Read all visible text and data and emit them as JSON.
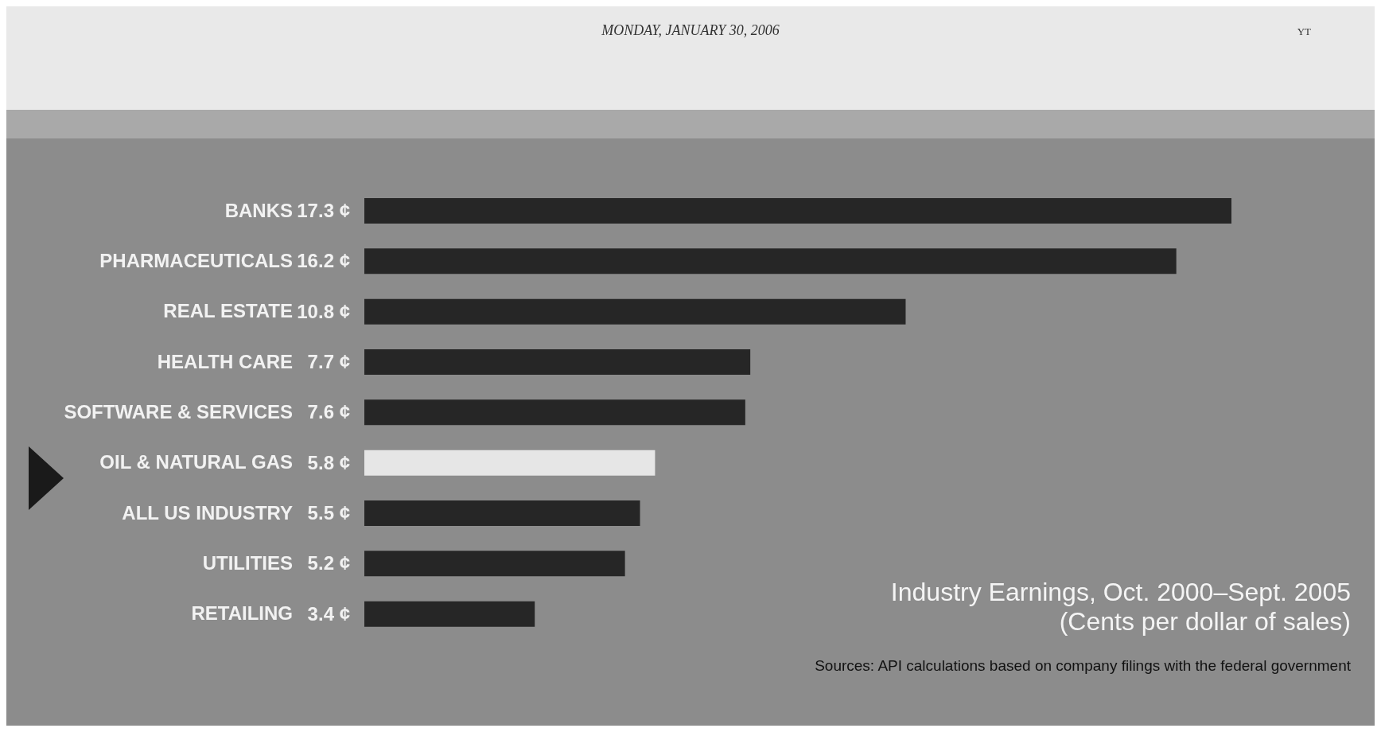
{
  "chart_data": {
    "type": "bar",
    "orientation": "horizontal",
    "title": "Industry Earnings, Oct. 2000–Sept. 2005",
    "subtitle": "(Cents per dollar of sales)",
    "annotations": [
      "MONDAY, JANUARY 30, 2006",
      "YT",
      "Sources: API calculations based on company filings with the federal government"
    ],
    "categories": [
      "BANKS",
      "PHARMACEUTICALS",
      "REAL ESTATE",
      "HEALTH CARE",
      "SOFTWARE & SERVICES",
      "OIL & NATURAL GAS",
      "ALL US INDUSTRY",
      "UTILITIES",
      "RETAILING"
    ],
    "values": [
      17.3,
      16.2,
      10.8,
      7.7,
      7.6,
      5.8,
      5.5,
      5.2,
      3.4
    ],
    "value_labels": [
      "17.3 ¢",
      "16.2 ¢",
      "10.8 ¢",
      "7.7 ¢",
      "7.6 ¢",
      "5.8 ¢",
      "5.5 ¢",
      "5.2 ¢",
      "3.4 ¢"
    ],
    "colors": [
      "#262626",
      "#262626",
      "#262626",
      "#262626",
      "#262626",
      "#e6e6e6",
      "#262626",
      "#262626",
      "#262626"
    ]
  }
}
